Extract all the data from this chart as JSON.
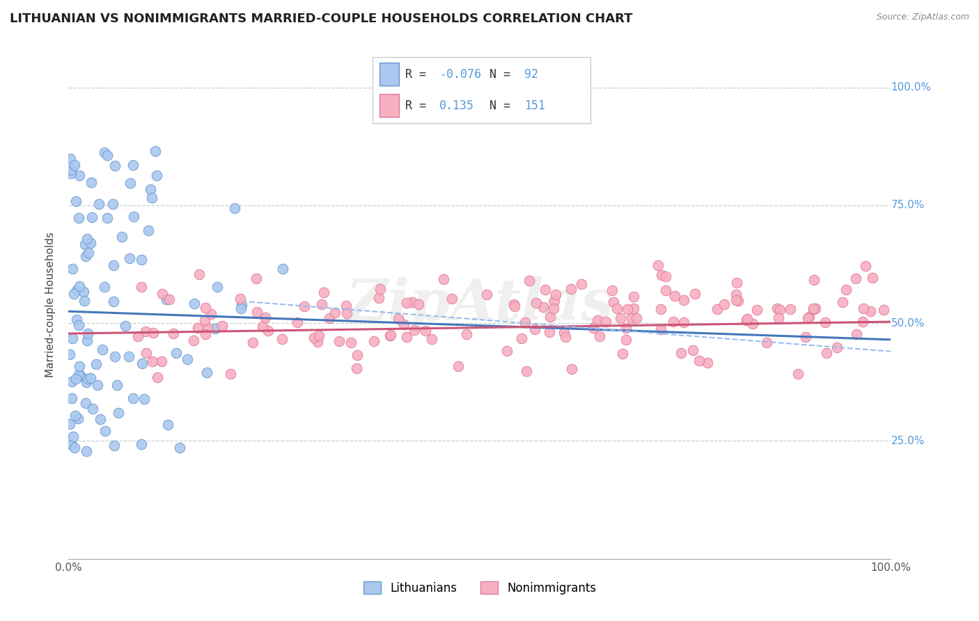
{
  "title": "LITHUANIAN VS NONIMMIGRANTS MARRIED-COUPLE HOUSEHOLDS CORRELATION CHART",
  "source": "Source: ZipAtlas.com",
  "ylabel": "Married-couple Households",
  "xlim": [
    0.0,
    1.0
  ],
  "ylim": [
    0.0,
    1.08
  ],
  "yticks": [
    0.0,
    0.25,
    0.5,
    0.75,
    1.0
  ],
  "ytick_labels": [
    "",
    "25.0%",
    "50.0%",
    "75.0%",
    "100.0%"
  ],
  "xticks": [
    0.0,
    1.0
  ],
  "xtick_labels": [
    "0.0%",
    "100.0%"
  ],
  "legend_R1": "-0.076",
  "legend_N1": "92",
  "legend_R2": "0.135",
  "legend_N2": "151",
  "color_lithuanian": "#aac8f0",
  "color_nonimmigrant": "#f8b0c0",
  "edge_color_lithuanian": "#6699cc",
  "edge_color_nonimmigrant": "#dd7799",
  "line_color_lithuanian": "#4477bb",
  "line_color_nonimmigrant": "#cc5577",
  "line_color_dashed": "#99bbee",
  "background_color": "#ffffff",
  "grid_color": "#cccccc",
  "watermark": "ZipAtlas",
  "title_fontsize": 13,
  "axis_fontsize": 11,
  "tick_fontsize": 11,
  "legend_fontsize": 13,
  "seed": 42,
  "n_lithuanian": 92,
  "n_nonimmigrant": 151
}
